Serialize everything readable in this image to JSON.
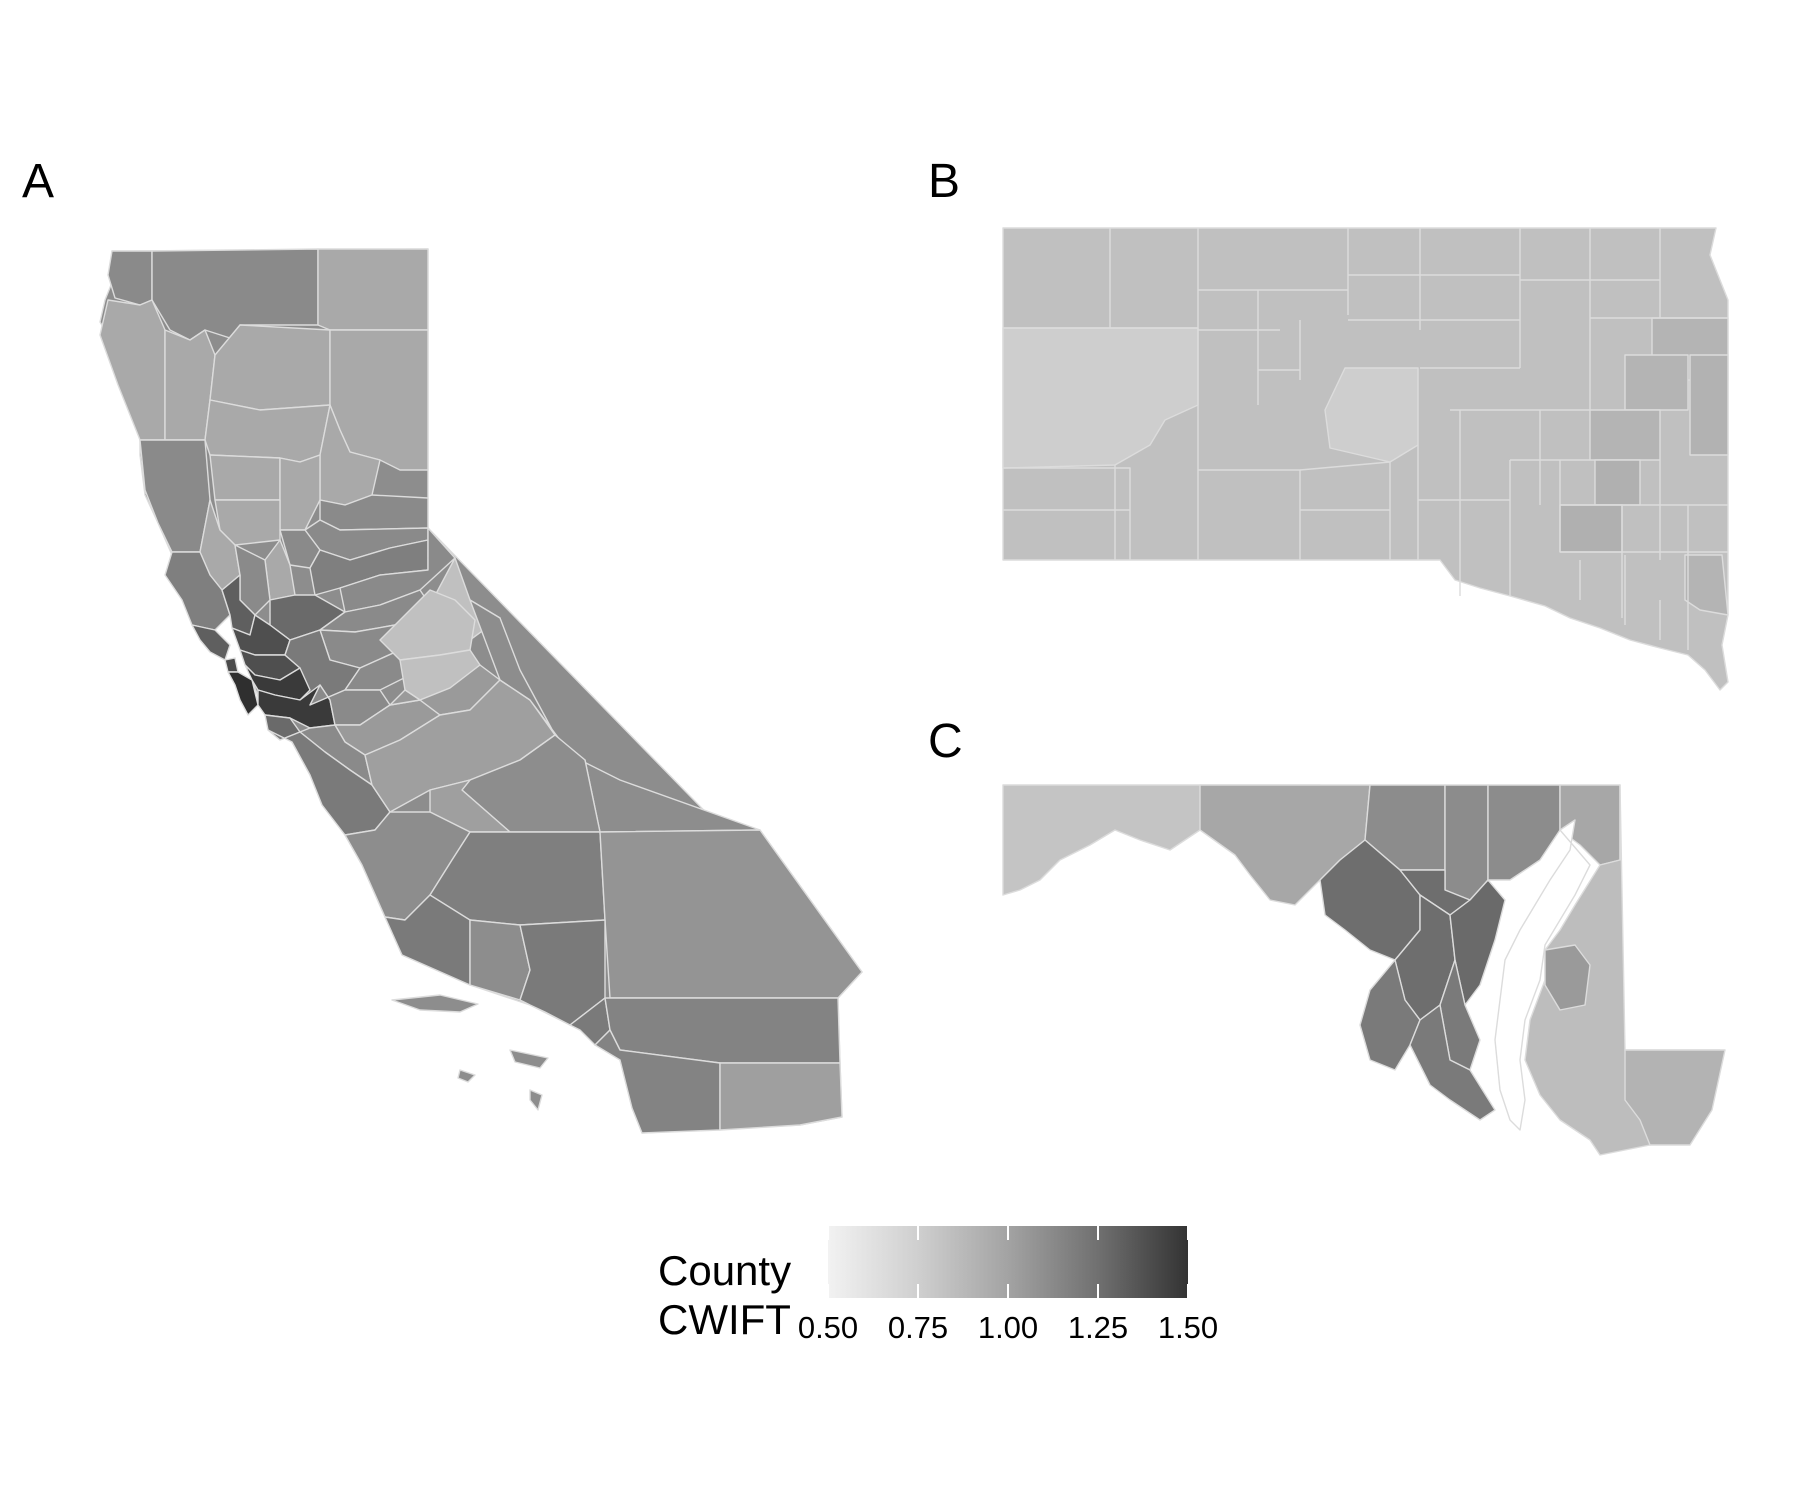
{
  "panels": [
    {
      "label": "A"
    },
    {
      "label": "B"
    },
    {
      "label": "C"
    }
  ],
  "legend": {
    "title_line1": "County",
    "title_line2": "CWIFT",
    "ticks": [
      "0.50",
      "0.75",
      "1.00",
      "1.25",
      "1.50"
    ],
    "tick_values": [
      0.5,
      0.75,
      1.0,
      1.25,
      1.5
    ],
    "range": [
      0.5,
      1.5
    ],
    "color_low": "#f2f2f2",
    "color_high": "#333333"
  },
  "colors": {
    "county_border": "#dcdcdc",
    "background": "#ffffff"
  }
}
